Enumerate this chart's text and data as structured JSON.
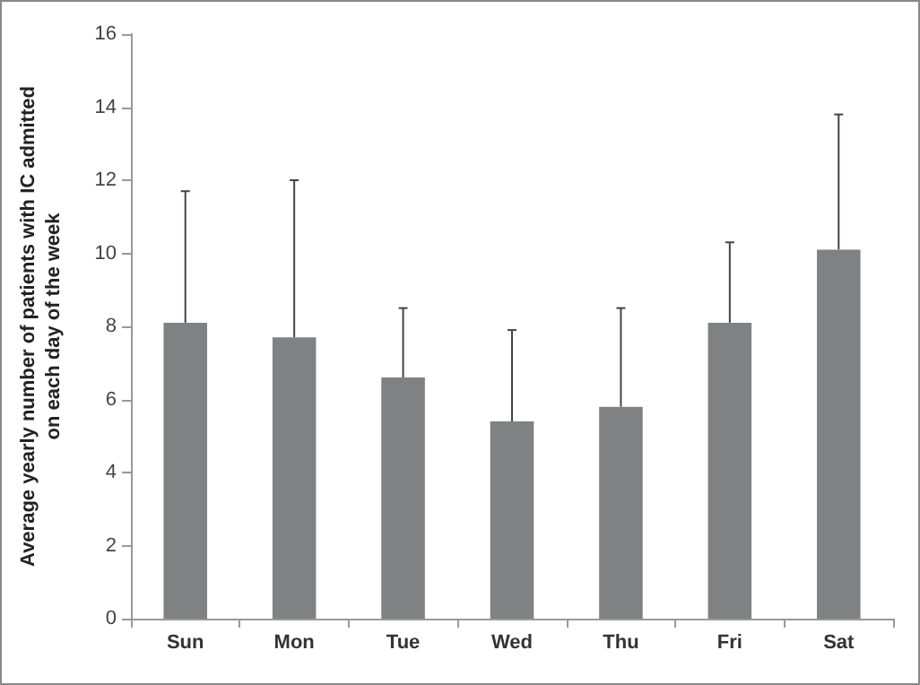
{
  "chart_data": {
    "type": "bar",
    "ylabel": "Average yearly number of patients with IC admitted on each day of the week",
    "categories": [
      "Sun",
      "Mon",
      "Tue",
      "Wed",
      "Thu",
      "Fri",
      "Sat"
    ],
    "values": [
      8.1,
      7.7,
      6.6,
      5.4,
      5.8,
      8.1,
      10.1
    ],
    "errors": [
      [
        8.1,
        11.7
      ],
      [
        7.7,
        12.0
      ],
      [
        6.6,
        8.5
      ],
      [
        5.4,
        7.9
      ],
      [
        5.8,
        8.5
      ],
      [
        8.1,
        10.3
      ],
      [
        10.1,
        13.8
      ]
    ],
    "color": "#7f8183",
    "ylim": [
      0,
      16
    ],
    "yticks": [
      0,
      2,
      4,
      6,
      8,
      10,
      12,
      14,
      16
    ],
    "grid": false
  }
}
